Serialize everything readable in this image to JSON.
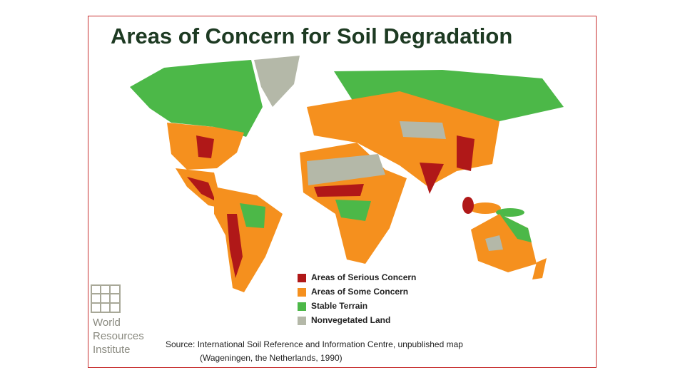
{
  "title": "Areas of Concern for Soil Degradation",
  "legend": [
    {
      "label": "Areas of Serious Concern",
      "color": "#b01818"
    },
    {
      "label": "Areas of Some Concern",
      "color": "#f5901e"
    },
    {
      "label": "Stable Terrain",
      "color": "#4cb848"
    },
    {
      "label": "Nonvegetated Land",
      "color": "#b4b8a8"
    }
  ],
  "logo": [
    "World",
    "Resources",
    "Institute"
  ],
  "source": [
    "Source: International Soil Reference and Information Centre, unpublished map",
    "(Wageningen, the Netherlands, 1990)"
  ]
}
